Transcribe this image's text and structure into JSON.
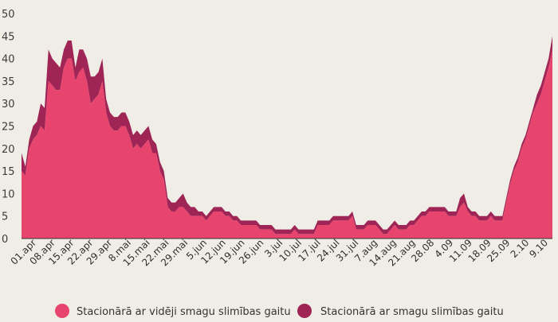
{
  "chart_data": {
    "type": "area",
    "stacked": true,
    "title": "",
    "xlabel": "",
    "ylabel": "",
    "ylim": [
      0,
      50
    ],
    "yticks": [
      0,
      5,
      10,
      15,
      20,
      25,
      30,
      35,
      40,
      45,
      50
    ],
    "grid": false,
    "legend_position": "bottom",
    "x_labels": [
      "01.apr",
      "08.apr",
      "15.apr",
      "22.apr",
      "29.apr",
      "8.mai",
      "15.mai",
      "22.mai",
      "29.mai",
      "5.jun",
      "12.jun",
      "19.jun",
      "26.jun",
      "3.jul",
      "10.jul",
      "17.jul",
      "24.jul",
      "31.jul",
      "7.aug",
      "14.aug",
      "21.aug",
      "28.08",
      "4.09",
      "11.09",
      "18.09",
      "25.09",
      "2.10",
      "9.10"
    ],
    "series": [
      {
        "name": "Stacionārā ar vidēji smagu slimības gaitu",
        "color": "#e8456e",
        "values": [
          15,
          14,
          20,
          22,
          23,
          25,
          24,
          35,
          34,
          33,
          33,
          38,
          40,
          40,
          35,
          37,
          38,
          35,
          30,
          31,
          32,
          35,
          28,
          25,
          24,
          24,
          25,
          25,
          23,
          20,
          21,
          20,
          21,
          22,
          19,
          19,
          15,
          13,
          7,
          6,
          6,
          7,
          7,
          6,
          5,
          5,
          5,
          5,
          4,
          5,
          6,
          6,
          6,
          5,
          5,
          4,
          4,
          3,
          3,
          3,
          3,
          3,
          2,
          2,
          2,
          2,
          1,
          1,
          1,
          1,
          1,
          2,
          1,
          1,
          1,
          1,
          1,
          3,
          3,
          3,
          3,
          4,
          4,
          4,
          4,
          4,
          5,
          2,
          2,
          2,
          3,
          3,
          3,
          2,
          1,
          1,
          2,
          3,
          2,
          2,
          2,
          3,
          3,
          4,
          5,
          5,
          6,
          6,
          6,
          6,
          6,
          5,
          5,
          5,
          7,
          8,
          6,
          5,
          5,
          4,
          4,
          4,
          5,
          4,
          4,
          4,
          8,
          12,
          15,
          17,
          20,
          22,
          25,
          28,
          30,
          32,
          35,
          38,
          42
        ]
      },
      {
        "name": "Stacionārā ar smagu slimības gaitu",
        "color": "#9e2555",
        "values": [
          4,
          2,
          2,
          3,
          3,
          5,
          5,
          7,
          6,
          6,
          5,
          4,
          4,
          4,
          3,
          5,
          4,
          5,
          6,
          5,
          5,
          5,
          3,
          3,
          3,
          3,
          3,
          3,
          3,
          3,
          3,
          3,
          3,
          3,
          3,
          2,
          2,
          2,
          2,
          2,
          2,
          2,
          3,
          2,
          2,
          2,
          1,
          1,
          1,
          1,
          1,
          1,
          1,
          1,
          1,
          1,
          1,
          1,
          1,
          1,
          1,
          1,
          1,
          1,
          1,
          1,
          1,
          1,
          1,
          1,
          1,
          1,
          1,
          1,
          1,
          1,
          1,
          1,
          1,
          1,
          1,
          1,
          1,
          1,
          1,
          1,
          1,
          1,
          1,
          1,
          1,
          1,
          1,
          1,
          1,
          1,
          1,
          1,
          1,
          1,
          1,
          1,
          1,
          1,
          1,
          1,
          1,
          1,
          1,
          1,
          1,
          1,
          1,
          1,
          2,
          2,
          1,
          1,
          1,
          1,
          1,
          1,
          1,
          1,
          1,
          1,
          1,
          1,
          1,
          1,
          1,
          1,
          1,
          1,
          2,
          2,
          2,
          2,
          3
        ]
      }
    ]
  }
}
